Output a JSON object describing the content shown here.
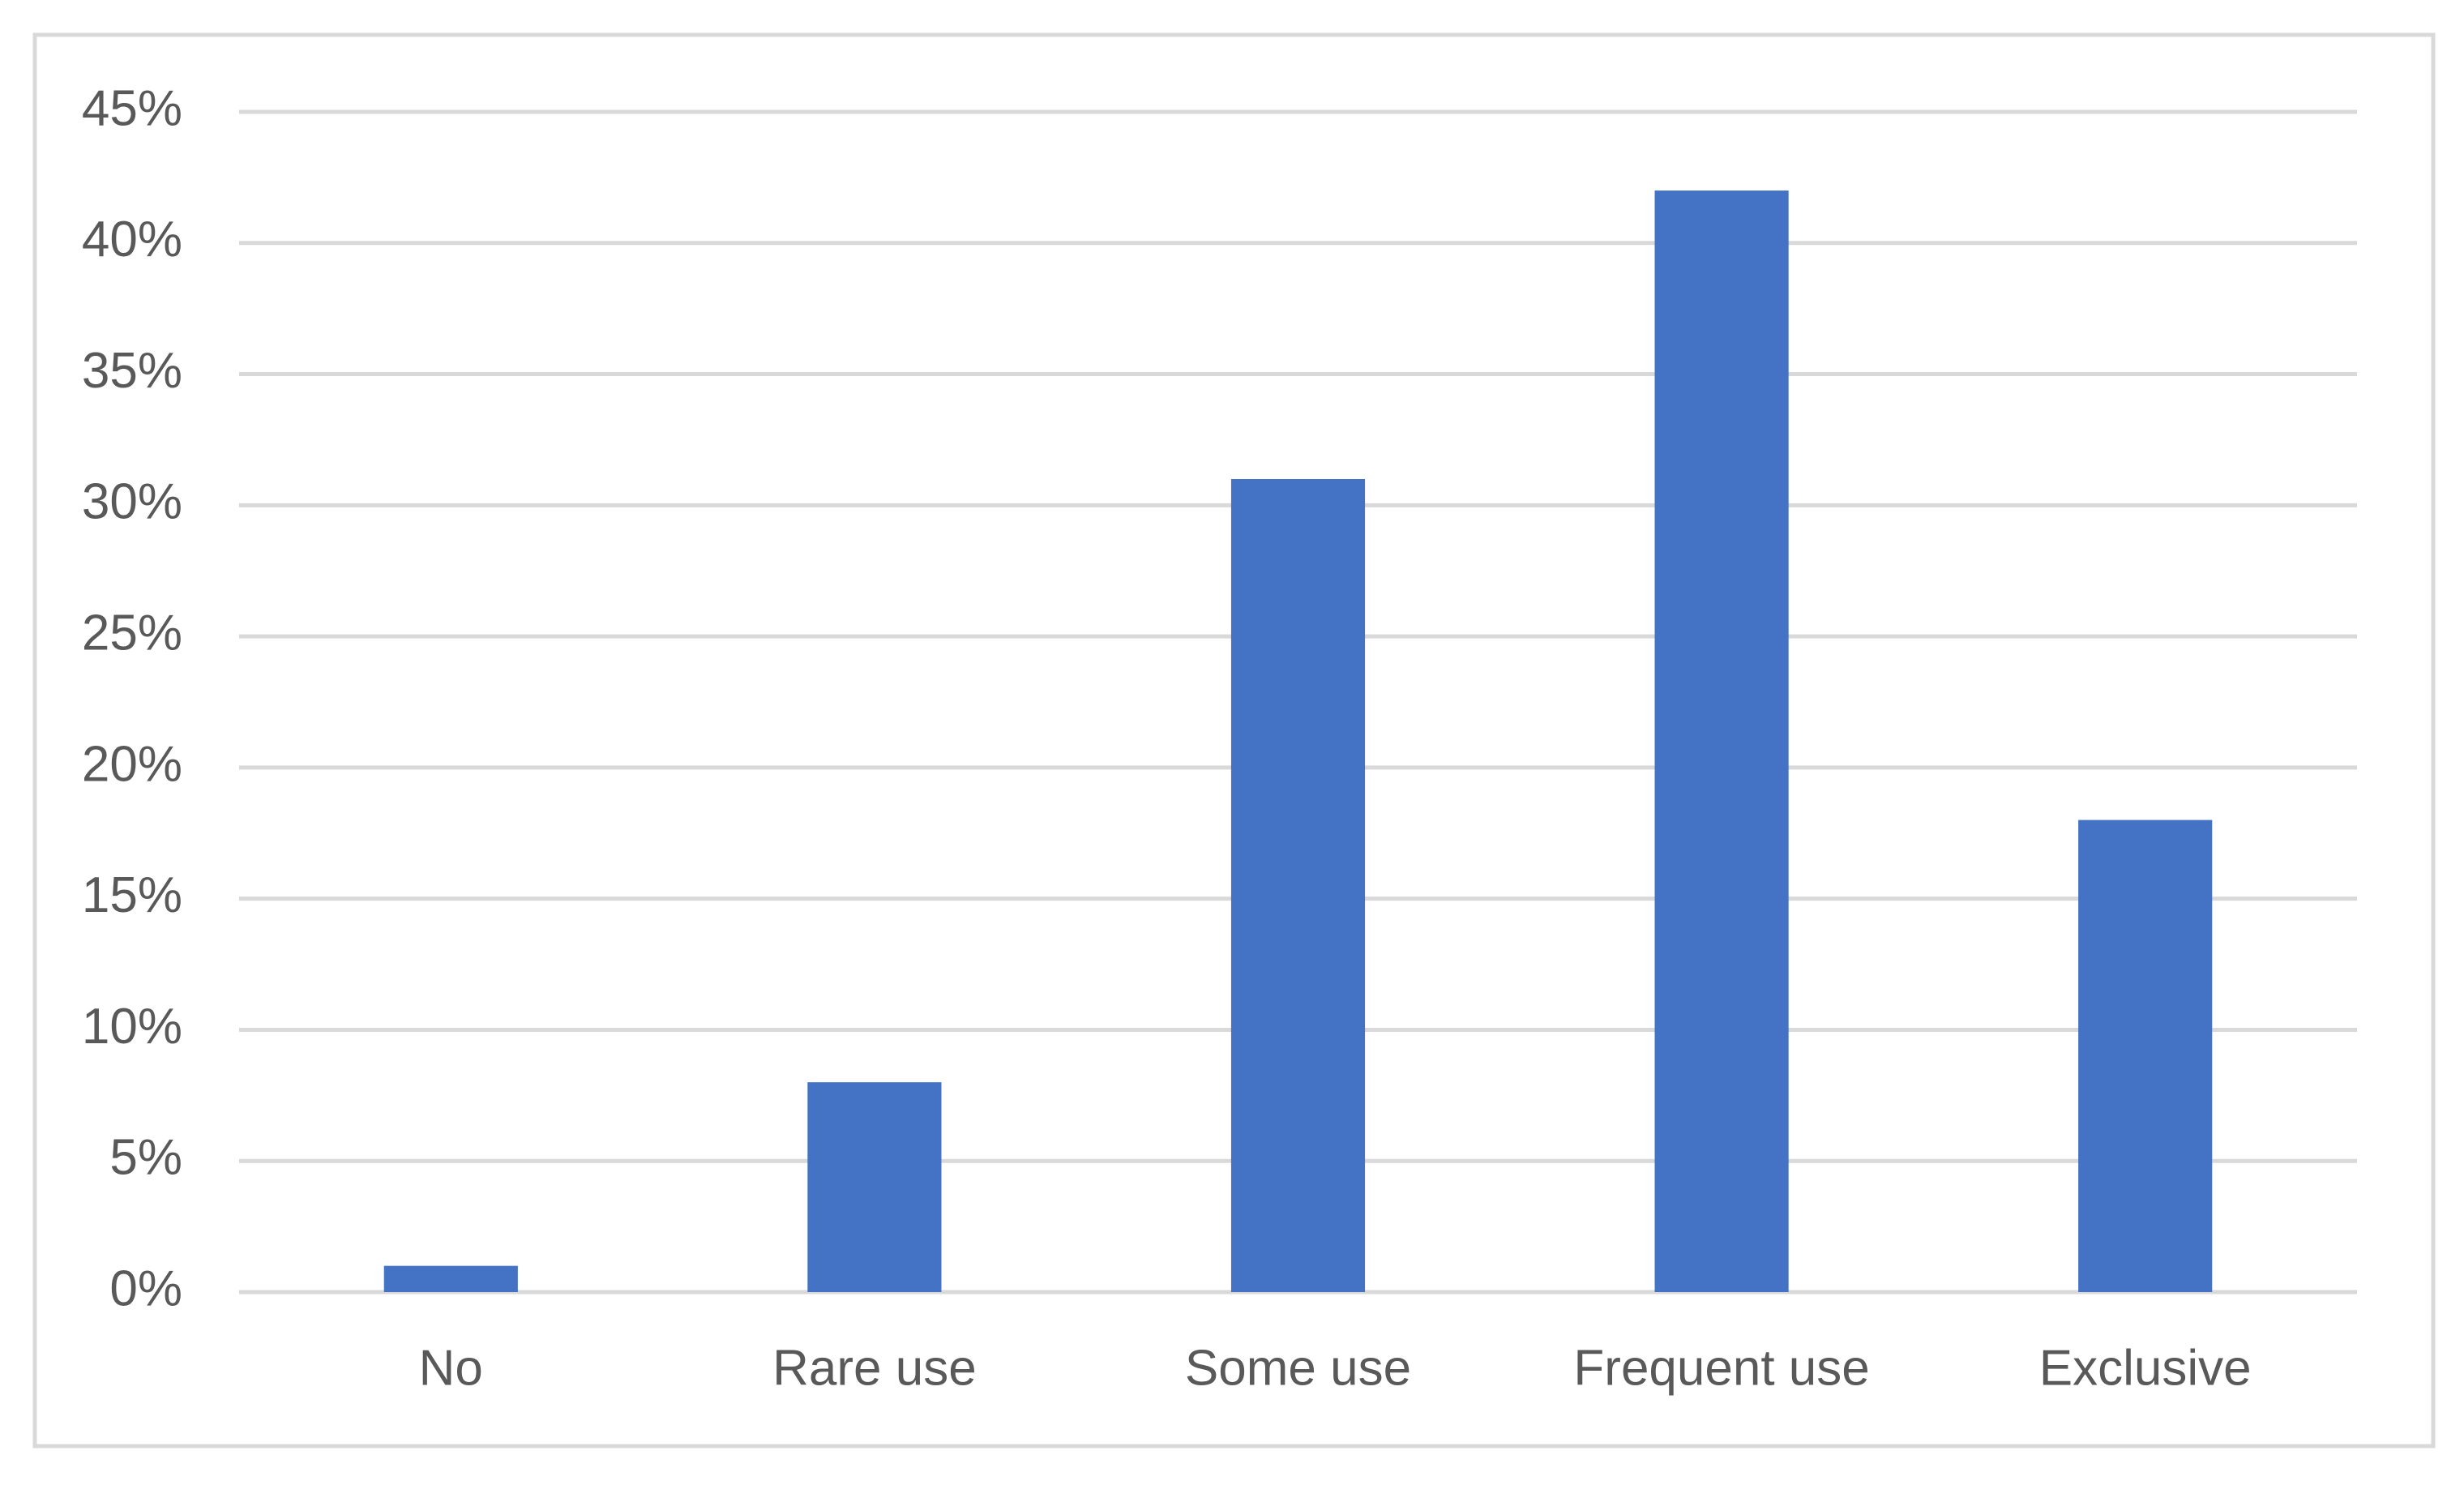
{
  "chart_data": {
    "type": "bar",
    "categories": [
      "No",
      "Rare use",
      "Some use",
      "Frequent use",
      "Exclusive"
    ],
    "values": [
      1,
      8,
      31,
      42,
      18
    ],
    "color": "#4472c4",
    "ylim": [
      0,
      45
    ],
    "yticks": [
      {
        "value": 0,
        "label": "0%"
      },
      {
        "value": 5,
        "label": "5%"
      },
      {
        "value": 10,
        "label": "10%"
      },
      {
        "value": 15,
        "label": "15%"
      },
      {
        "value": 20,
        "label": "20%"
      },
      {
        "value": 25,
        "label": "25%"
      },
      {
        "value": 30,
        "label": "30%"
      },
      {
        "value": 35,
        "label": "35%"
      },
      {
        "value": 40,
        "label": "40%"
      },
      {
        "value": 45,
        "label": "45%"
      }
    ],
    "grid": true
  }
}
